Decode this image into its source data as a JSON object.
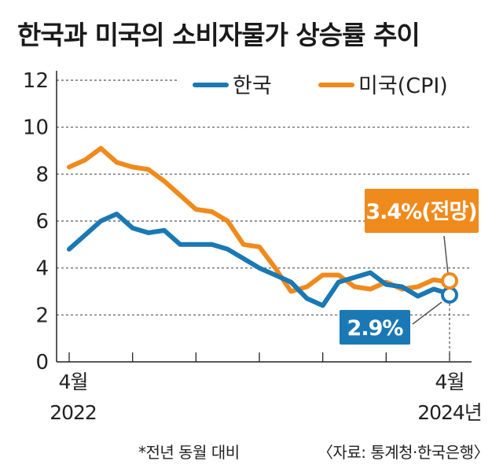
{
  "title": "한국과 미국의 소비자물가 상승률 추이",
  "footnote_left": "*전년 동월 대비",
  "footnote_right": "〈자료: 통계청·한국은행〉",
  "colors": {
    "korea": "#1a78b4",
    "us": "#ef8a1c",
    "grid": "#555555"
  },
  "chart_data": {
    "type": "line",
    "x_start_label": [
      "4월",
      "2022"
    ],
    "x_end_label": [
      "4월",
      "2024년"
    ],
    "ylim": [
      0,
      12
    ],
    "yticks": [
      "0",
      "2",
      "4",
      "6",
      "8",
      "10",
      "12"
    ],
    "grid": true,
    "legend_position": "top-right",
    "series": [
      {
        "name": "한국",
        "color": "#1a78b4",
        "values": [
          4.8,
          5.4,
          6.0,
          6.3,
          5.7,
          5.5,
          5.6,
          5.0,
          5.0,
          5.0,
          4.8,
          4.4,
          4.0,
          3.7,
          3.4,
          2.7,
          2.4,
          3.4,
          3.6,
          3.8,
          3.3,
          3.2,
          2.8,
          3.1,
          2.9
        ],
        "end_label": "2.9%"
      },
      {
        "name": "미국(CPI)",
        "color": "#ef8a1c",
        "values": [
          8.3,
          8.6,
          9.1,
          8.5,
          8.3,
          8.2,
          7.7,
          7.1,
          6.5,
          6.4,
          6.0,
          5.0,
          4.9,
          4.0,
          3.0,
          3.2,
          3.7,
          3.7,
          3.2,
          3.1,
          3.4,
          3.1,
          3.2,
          3.5,
          3.4
        ],
        "end_label": "3.4%(전망)"
      }
    ]
  }
}
